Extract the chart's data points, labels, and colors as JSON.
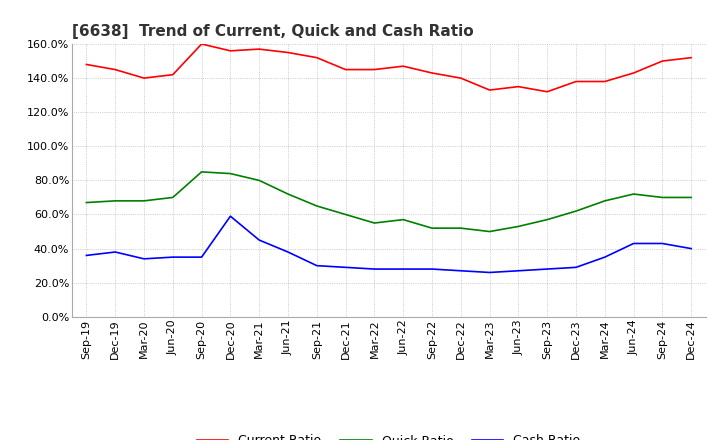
{
  "title": "[6638]  Trend of Current, Quick and Cash Ratio",
  "x_labels": [
    "Sep-19",
    "Dec-19",
    "Mar-20",
    "Jun-20",
    "Sep-20",
    "Dec-20",
    "Mar-21",
    "Jun-21",
    "Sep-21",
    "Dec-21",
    "Mar-22",
    "Jun-22",
    "Sep-22",
    "Dec-22",
    "Mar-23",
    "Jun-23",
    "Sep-23",
    "Dec-23",
    "Mar-24",
    "Jun-24",
    "Sep-24",
    "Dec-24"
  ],
  "current_ratio": [
    148,
    145,
    140,
    142,
    160,
    156,
    157,
    155,
    152,
    145,
    145,
    147,
    143,
    140,
    133,
    135,
    132,
    138,
    138,
    143,
    150,
    152
  ],
  "quick_ratio": [
    67,
    68,
    68,
    70,
    85,
    84,
    80,
    72,
    65,
    60,
    55,
    57,
    52,
    52,
    50,
    53,
    57,
    62,
    68,
    72,
    70,
    70
  ],
  "cash_ratio": [
    36,
    38,
    34,
    35,
    35,
    59,
    45,
    38,
    30,
    29,
    28,
    28,
    28,
    27,
    26,
    27,
    28,
    29,
    35,
    43,
    43,
    40
  ],
  "current_color": "#FF0000",
  "quick_color": "#008000",
  "cash_color": "#0000FF",
  "ylim": [
    0,
    160
  ],
  "ytick_values": [
    0,
    20,
    40,
    60,
    80,
    100,
    120,
    140,
    160
  ],
  "ytick_labels": [
    "0.0%",
    "20.0%",
    "40.0%",
    "60.0%",
    "80.0%",
    "100.0%",
    "120.0%",
    "140.0%",
    "160.0%"
  ],
  "background_color": "#FFFFFF",
  "grid_color": "#AAAAAA",
  "title_fontsize": 11,
  "tick_fontsize": 8,
  "legend_fontsize": 9,
  "line_width": 1.2
}
